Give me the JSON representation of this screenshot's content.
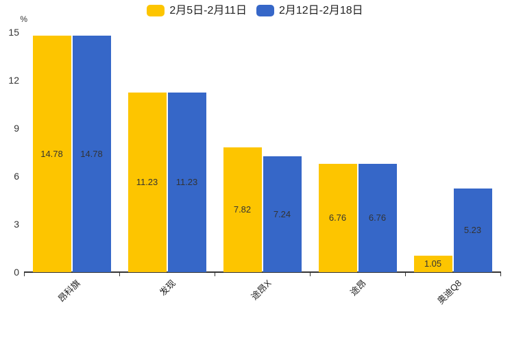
{
  "chart_data": {
    "type": "bar",
    "title": "",
    "ylabel": "%",
    "categories": [
      "昂科旗",
      "发现",
      "途昂X",
      "途昂",
      "奥迪Q8"
    ],
    "series": [
      {
        "name": "2月5日-2月11日",
        "color": "#FDC500",
        "values": [
          14.78,
          11.23,
          7.82,
          6.76,
          1.05
        ]
      },
      {
        "name": "2月12日-2月18日",
        "color": "#3667C8",
        "values": [
          14.78,
          11.23,
          7.24,
          6.76,
          5.23
        ]
      }
    ],
    "ylim": [
      0,
      15
    ],
    "yticks": [
      0,
      3,
      6,
      9,
      12,
      15
    ],
    "grid": false,
    "legend_position": "top",
    "value_label_position": "inside-center",
    "value_label_decimals": 2,
    "xtick_label_rotation": 45,
    "colors": {
      "axis": "#333333",
      "text": "#333333"
    }
  }
}
